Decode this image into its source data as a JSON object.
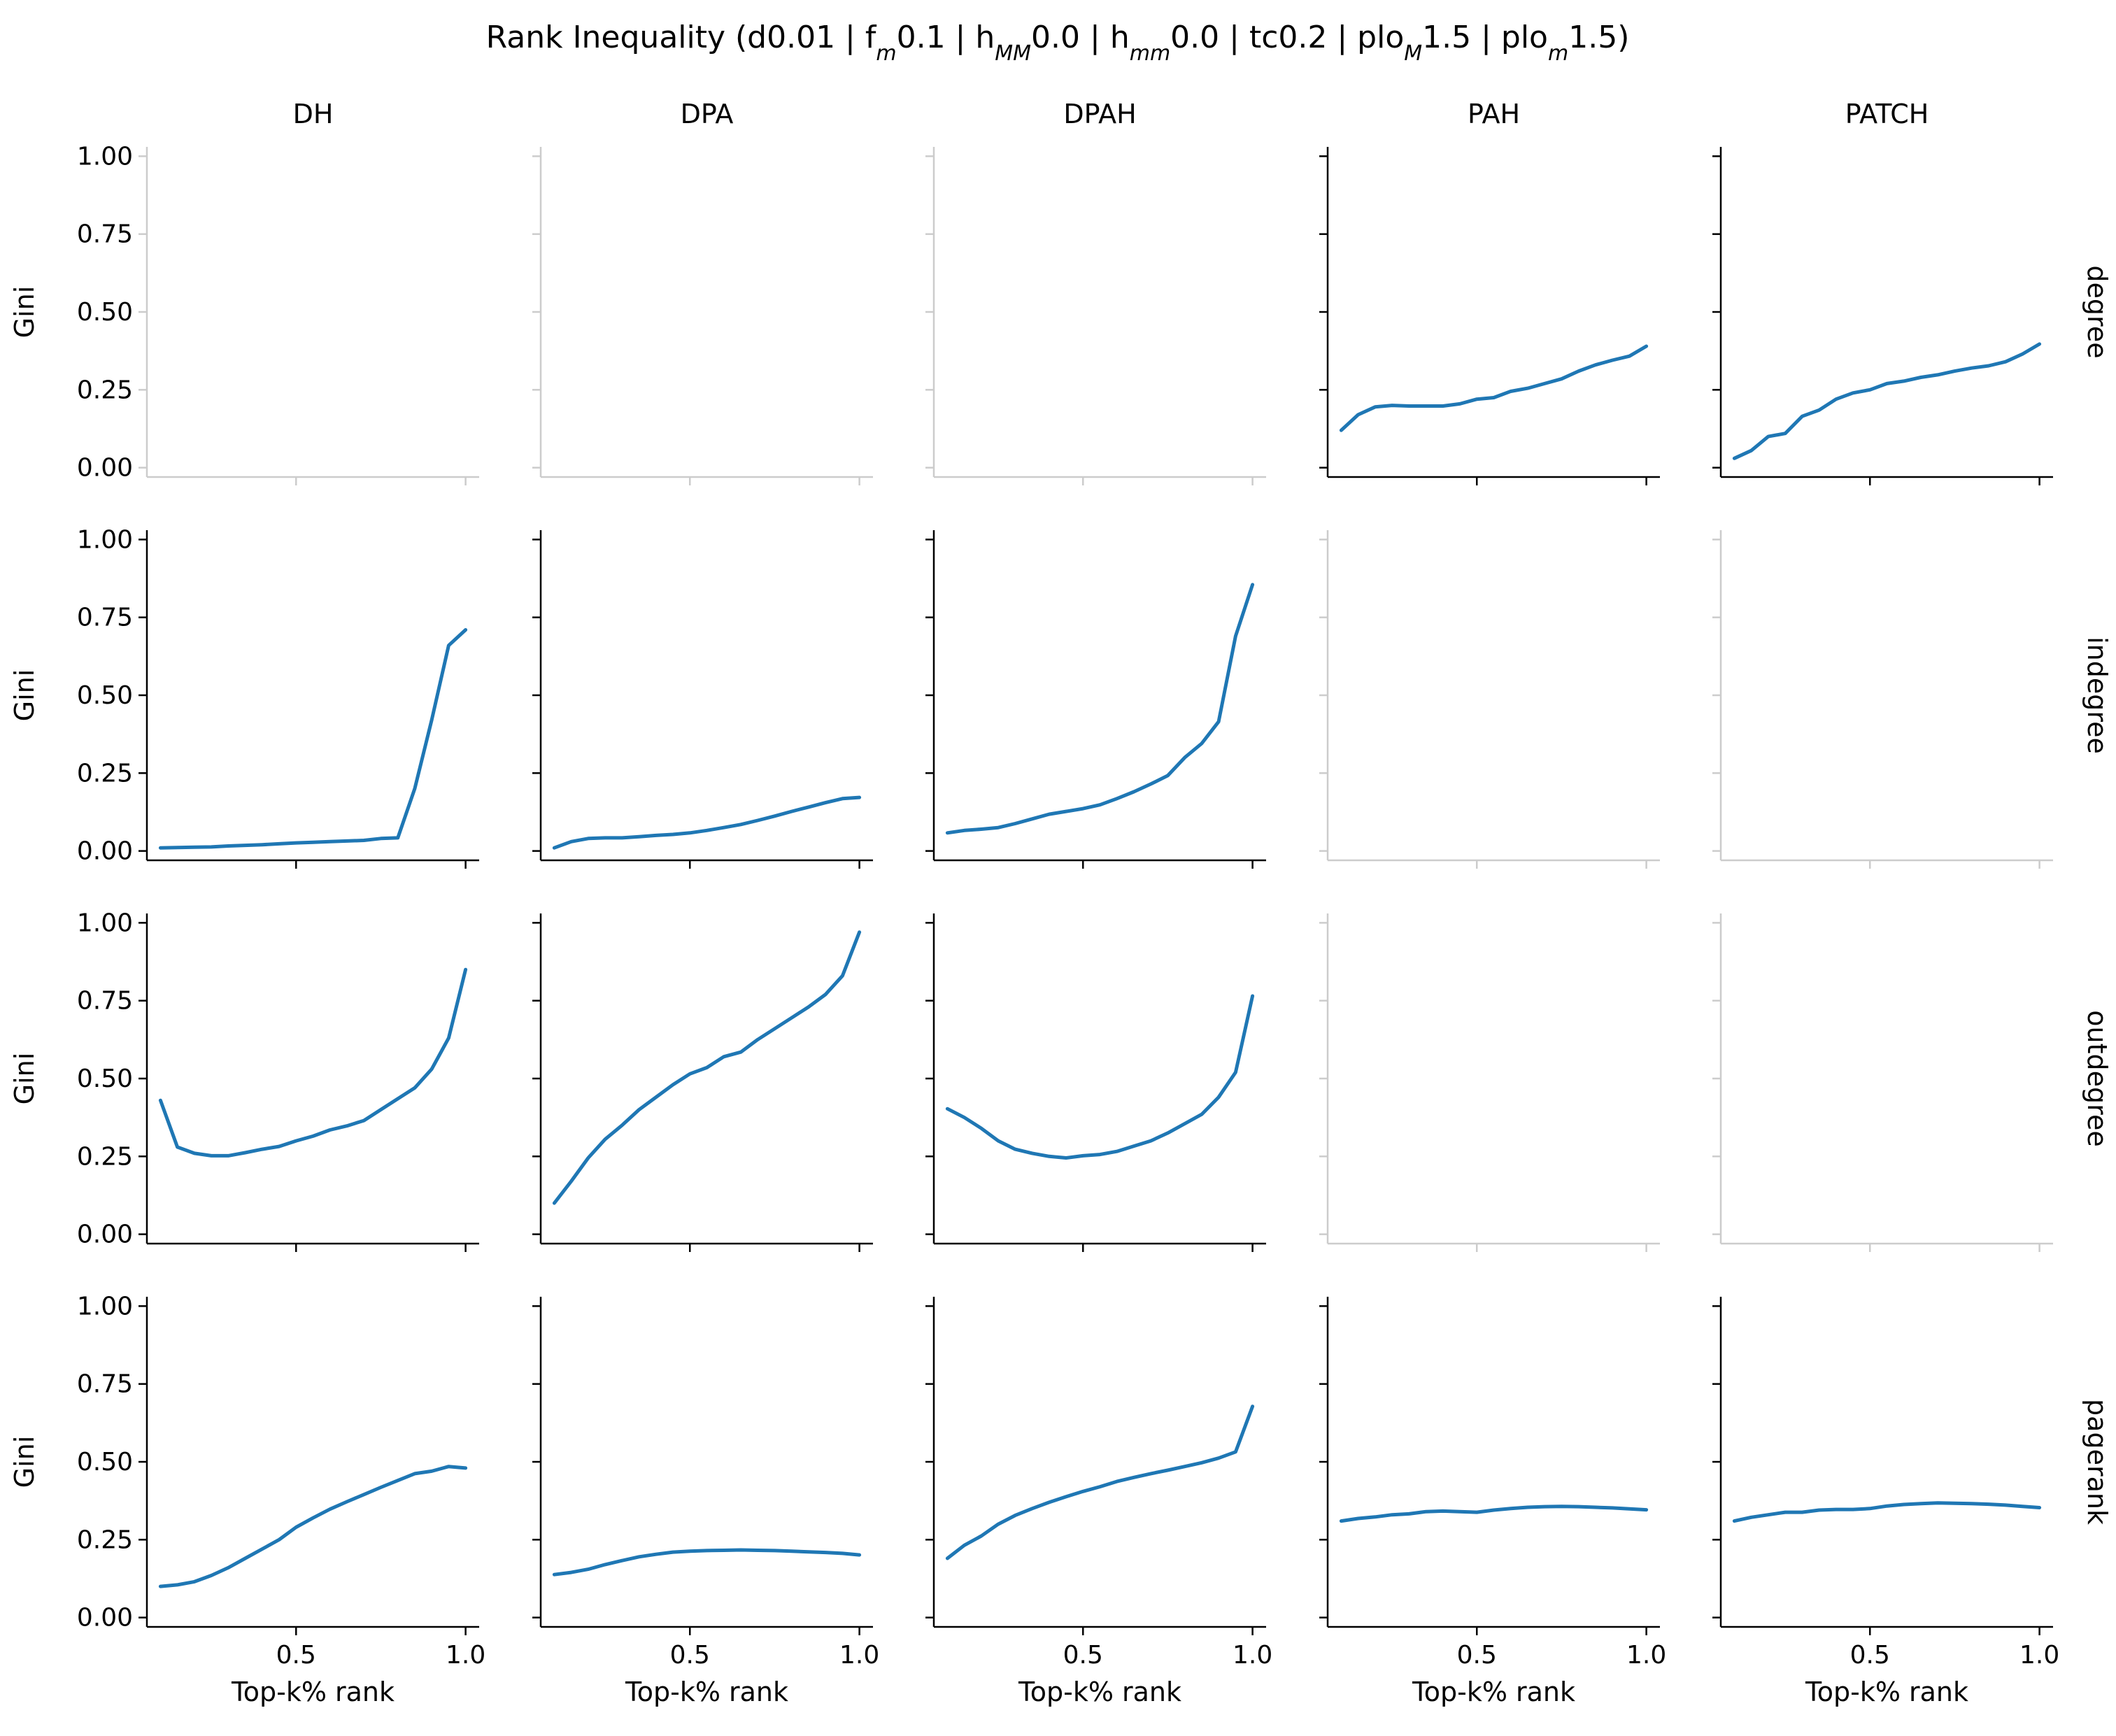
{
  "title_parts": [
    {
      "t": "Rank Inequality (d0.01 | f"
    },
    {
      "t": "m",
      "sub": true
    },
    {
      "t": "0.1 | h"
    },
    {
      "t": "MM",
      "sub": true
    },
    {
      "t": "0.0 | h"
    },
    {
      "t": "mm",
      "sub": true
    },
    {
      "t": "0.0 | tc0.2 | plo"
    },
    {
      "t": "M",
      "sub": true
    },
    {
      "t": "1.5 | plo"
    },
    {
      "t": "m",
      "sub": true
    },
    {
      "t": "1.5)"
    }
  ],
  "columns": [
    "DH",
    "DPA",
    "DPAH",
    "PAH",
    "PATCH"
  ],
  "rows": [
    "degree",
    "indegree",
    "outdegree",
    "pagerank"
  ],
  "axis": {
    "xlabel": "Top-k% rank",
    "ylabel": "Gini",
    "xlim": [
      0.06,
      1.04
    ],
    "ylim": [
      -0.03,
      1.03
    ],
    "xticks": [
      0.5,
      1.0
    ],
    "xtick_labels": [
      "0.5",
      "1.0"
    ],
    "yticks": [
      0.0,
      0.25,
      0.5,
      0.75,
      1.0
    ],
    "ytick_labels": [
      "0.00",
      "0.25",
      "0.50",
      "0.75",
      "1.00"
    ]
  },
  "colors": {
    "line": "#1f77b4",
    "axis_active": "#000000",
    "axis_empty": "#cccccc"
  },
  "chart_data": {
    "type": "line",
    "x": [
      0.1,
      0.15,
      0.2,
      0.25,
      0.3,
      0.35,
      0.4,
      0.45,
      0.5,
      0.55,
      0.6,
      0.65,
      0.7,
      0.75,
      0.8,
      0.85,
      0.9,
      0.95,
      1.0
    ],
    "panels": [
      {
        "row": "degree",
        "col": "DH",
        "values": null
      },
      {
        "row": "degree",
        "col": "DPA",
        "values": null
      },
      {
        "row": "degree",
        "col": "DPAH",
        "values": null
      },
      {
        "row": "degree",
        "col": "PAH",
        "values": [
          0.12,
          0.17,
          0.195,
          0.2,
          0.198,
          0.198,
          0.198,
          0.205,
          0.22,
          0.225,
          0.245,
          0.255,
          0.27,
          0.285,
          0.31,
          0.33,
          0.345,
          0.358,
          0.39
        ]
      },
      {
        "row": "degree",
        "col": "PATCH",
        "values": [
          0.03,
          0.055,
          0.1,
          0.11,
          0.165,
          0.185,
          0.22,
          0.24,
          0.25,
          0.27,
          0.278,
          0.29,
          0.298,
          0.31,
          0.32,
          0.327,
          0.34,
          0.365,
          0.397
        ]
      },
      {
        "row": "indegree",
        "col": "DH",
        "values": [
          0.01,
          0.011,
          0.012,
          0.013,
          0.016,
          0.018,
          0.02,
          0.023,
          0.026,
          0.028,
          0.03,
          0.032,
          0.034,
          0.04,
          0.042,
          0.2,
          0.42,
          0.66,
          0.71
        ]
      },
      {
        "row": "indegree",
        "col": "DPA",
        "values": [
          0.01,
          0.03,
          0.04,
          0.042,
          0.042,
          0.046,
          0.05,
          0.053,
          0.058,
          0.066,
          0.075,
          0.085,
          0.098,
          0.112,
          0.127,
          0.141,
          0.155,
          0.168,
          0.172
        ]
      },
      {
        "row": "indegree",
        "col": "DPAH",
        "values": [
          0.058,
          0.066,
          0.07,
          0.075,
          0.088,
          0.103,
          0.118,
          0.127,
          0.136,
          0.148,
          0.168,
          0.19,
          0.215,
          0.242,
          0.3,
          0.345,
          0.415,
          0.69,
          0.855
        ]
      },
      {
        "row": "indegree",
        "col": "PAH",
        "values": null
      },
      {
        "row": "indegree",
        "col": "PATCH",
        "values": null
      },
      {
        "row": "outdegree",
        "col": "DH",
        "values": [
          0.43,
          0.28,
          0.26,
          0.252,
          0.252,
          0.262,
          0.273,
          0.282,
          0.3,
          0.315,
          0.335,
          0.348,
          0.365,
          0.4,
          0.435,
          0.47,
          0.53,
          0.63,
          0.85
        ]
      },
      {
        "row": "outdegree",
        "col": "DPA",
        "values": [
          0.1,
          0.17,
          0.245,
          0.305,
          0.35,
          0.4,
          0.44,
          0.48,
          0.515,
          0.535,
          0.57,
          0.585,
          0.625,
          0.66,
          0.695,
          0.73,
          0.77,
          0.83,
          0.97
        ]
      },
      {
        "row": "outdegree",
        "col": "DPAH",
        "values": [
          0.403,
          0.375,
          0.34,
          0.3,
          0.273,
          0.26,
          0.25,
          0.245,
          0.252,
          0.256,
          0.266,
          0.283,
          0.3,
          0.325,
          0.355,
          0.385,
          0.44,
          0.52,
          0.765
        ]
      },
      {
        "row": "outdegree",
        "col": "PAH",
        "values": null
      },
      {
        "row": "outdegree",
        "col": "PATCH",
        "values": null
      },
      {
        "row": "pagerank",
        "col": "DH",
        "values": [
          0.1,
          0.105,
          0.115,
          0.135,
          0.16,
          0.19,
          0.22,
          0.25,
          0.29,
          0.32,
          0.348,
          0.372,
          0.395,
          0.418,
          0.44,
          0.462,
          0.47,
          0.485,
          0.48
        ]
      },
      {
        "row": "pagerank",
        "col": "DPA",
        "values": [
          0.138,
          0.145,
          0.155,
          0.17,
          0.183,
          0.195,
          0.203,
          0.21,
          0.213,
          0.215,
          0.216,
          0.217,
          0.216,
          0.215,
          0.213,
          0.211,
          0.209,
          0.206,
          0.201
        ]
      },
      {
        "row": "pagerank",
        "col": "DPAH",
        "values": [
          0.19,
          0.232,
          0.262,
          0.3,
          0.328,
          0.35,
          0.37,
          0.388,
          0.405,
          0.42,
          0.437,
          0.45,
          0.462,
          0.473,
          0.485,
          0.497,
          0.512,
          0.532,
          0.678
        ]
      },
      {
        "row": "pagerank",
        "col": "PAH",
        "values": [
          0.31,
          0.318,
          0.323,
          0.33,
          0.333,
          0.34,
          0.342,
          0.34,
          0.338,
          0.345,
          0.35,
          0.354,
          0.356,
          0.357,
          0.356,
          0.354,
          0.352,
          0.349,
          0.346
        ]
      },
      {
        "row": "pagerank",
        "col": "PATCH",
        "values": [
          0.31,
          0.322,
          0.33,
          0.338,
          0.338,
          0.345,
          0.347,
          0.347,
          0.35,
          0.358,
          0.363,
          0.366,
          0.368,
          0.367,
          0.366,
          0.364,
          0.361,
          0.357,
          0.353
        ]
      }
    ]
  }
}
